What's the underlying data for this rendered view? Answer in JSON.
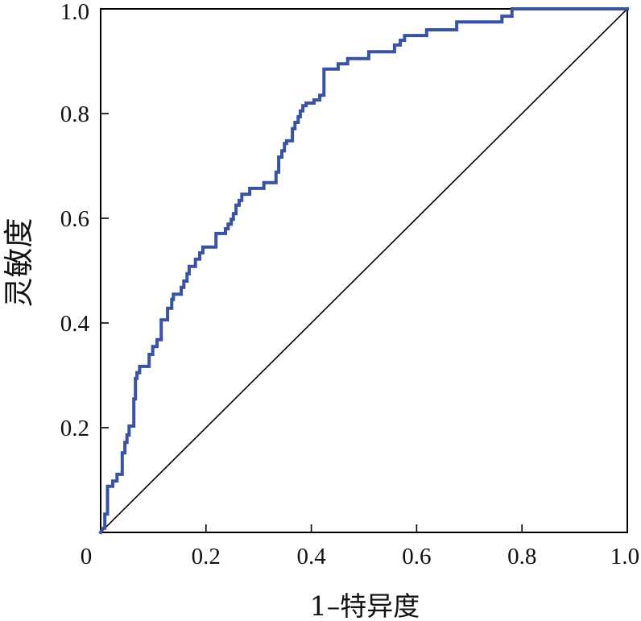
{
  "chart_data": {
    "type": "line",
    "xlabel": "1–特异度",
    "ylabel": "灵敏度",
    "xlim": [
      0,
      1
    ],
    "ylim": [
      0,
      1
    ],
    "x_ticks": [
      0,
      0.2,
      0.4,
      0.6,
      0.8,
      1.0
    ],
    "x_tick_labels": [
      "0",
      "0.2",
      "0.4",
      "0.6",
      "0.8",
      "1.0"
    ],
    "y_ticks": [
      0.2,
      0.4,
      0.6,
      0.8,
      1.0
    ],
    "y_tick_labels": [
      "0.2",
      "0.4",
      "0.6",
      "0.8",
      "1.0"
    ],
    "grid": false,
    "series": [
      {
        "color": "#3a52a2",
        "points": [
          [
            0,
            0
          ],
          [
            0.005,
            0.008
          ],
          [
            0.008,
            0.008
          ],
          [
            0.008,
            0.035
          ],
          [
            0.013,
            0.035
          ],
          [
            0.013,
            0.088
          ],
          [
            0.023,
            0.088
          ],
          [
            0.023,
            0.098
          ],
          [
            0.031,
            0.098
          ],
          [
            0.031,
            0.111
          ],
          [
            0.041,
            0.111
          ],
          [
            0.041,
            0.152
          ],
          [
            0.046,
            0.152
          ],
          [
            0.046,
            0.172
          ],
          [
            0.05,
            0.172
          ],
          [
            0.05,
            0.186
          ],
          [
            0.054,
            0.186
          ],
          [
            0.054,
            0.203
          ],
          [
            0.063,
            0.203
          ],
          [
            0.063,
            0.255
          ],
          [
            0.066,
            0.255
          ],
          [
            0.066,
            0.294
          ],
          [
            0.069,
            0.294
          ],
          [
            0.069,
            0.305
          ],
          [
            0.074,
            0.305
          ],
          [
            0.074,
            0.317
          ],
          [
            0.092,
            0.317
          ],
          [
            0.092,
            0.34
          ],
          [
            0.099,
            0.34
          ],
          [
            0.099,
            0.355
          ],
          [
            0.107,
            0.355
          ],
          [
            0.107,
            0.368
          ],
          [
            0.115,
            0.368
          ],
          [
            0.115,
            0.406
          ],
          [
            0.127,
            0.406
          ],
          [
            0.127,
            0.428
          ],
          [
            0.135,
            0.428
          ],
          [
            0.135,
            0.445
          ],
          [
            0.138,
            0.445
          ],
          [
            0.138,
            0.455
          ],
          [
            0.153,
            0.455
          ],
          [
            0.153,
            0.468
          ],
          [
            0.158,
            0.468
          ],
          [
            0.158,
            0.48
          ],
          [
            0.164,
            0.48
          ],
          [
            0.164,
            0.494
          ],
          [
            0.168,
            0.494
          ],
          [
            0.168,
            0.508
          ],
          [
            0.18,
            0.508
          ],
          [
            0.18,
            0.522
          ],
          [
            0.188,
            0.522
          ],
          [
            0.188,
            0.534
          ],
          [
            0.194,
            0.534
          ],
          [
            0.194,
            0.545
          ],
          [
            0.219,
            0.545
          ],
          [
            0.219,
            0.571
          ],
          [
            0.237,
            0.571
          ],
          [
            0.237,
            0.58
          ],
          [
            0.242,
            0.58
          ],
          [
            0.242,
            0.589
          ],
          [
            0.248,
            0.589
          ],
          [
            0.248,
            0.598
          ],
          [
            0.252,
            0.598
          ],
          [
            0.252,
            0.609
          ],
          [
            0.257,
            0.609
          ],
          [
            0.257,
            0.625
          ],
          [
            0.263,
            0.625
          ],
          [
            0.263,
            0.634
          ],
          [
            0.268,
            0.634
          ],
          [
            0.268,
            0.646
          ],
          [
            0.283,
            0.646
          ],
          [
            0.283,
            0.657
          ],
          [
            0.31,
            0.657
          ],
          [
            0.31,
            0.668
          ],
          [
            0.333,
            0.668
          ],
          [
            0.333,
            0.688
          ],
          [
            0.338,
            0.688
          ],
          [
            0.338,
            0.717
          ],
          [
            0.344,
            0.717
          ],
          [
            0.344,
            0.729
          ],
          [
            0.349,
            0.729
          ],
          [
            0.349,
            0.743
          ],
          [
            0.353,
            0.743
          ],
          [
            0.353,
            0.748
          ],
          [
            0.364,
            0.748
          ],
          [
            0.364,
            0.771
          ],
          [
            0.369,
            0.771
          ],
          [
            0.369,
            0.783
          ],
          [
            0.375,
            0.783
          ],
          [
            0.375,
            0.794
          ],
          [
            0.379,
            0.794
          ],
          [
            0.379,
            0.805
          ],
          [
            0.384,
            0.805
          ],
          [
            0.384,
            0.815
          ],
          [
            0.39,
            0.815
          ],
          [
            0.39,
            0.82
          ],
          [
            0.405,
            0.82
          ],
          [
            0.405,
            0.826
          ],
          [
            0.416,
            0.826
          ],
          [
            0.416,
            0.835
          ],
          [
            0.424,
            0.835
          ],
          [
            0.424,
            0.885
          ],
          [
            0.451,
            0.885
          ],
          [
            0.451,
            0.895
          ],
          [
            0.469,
            0.895
          ],
          [
            0.469,
            0.905
          ],
          [
            0.509,
            0.905
          ],
          [
            0.509,
            0.918
          ],
          [
            0.558,
            0.918
          ],
          [
            0.558,
            0.931
          ],
          [
            0.569,
            0.931
          ],
          [
            0.569,
            0.94
          ],
          [
            0.577,
            0.94
          ],
          [
            0.577,
            0.949
          ],
          [
            0.619,
            0.949
          ],
          [
            0.619,
            0.96
          ],
          [
            0.676,
            0.96
          ],
          [
            0.676,
            0.975
          ],
          [
            0.762,
            0.975
          ],
          [
            0.762,
            0.986
          ],
          [
            0.781,
            0.986
          ],
          [
            0.781,
            1.0
          ],
          [
            1.0,
            1.0
          ]
        ]
      },
      {
        "color": "#000000",
        "points": [
          [
            0,
            0
          ],
          [
            1,
            1
          ]
        ]
      }
    ]
  }
}
